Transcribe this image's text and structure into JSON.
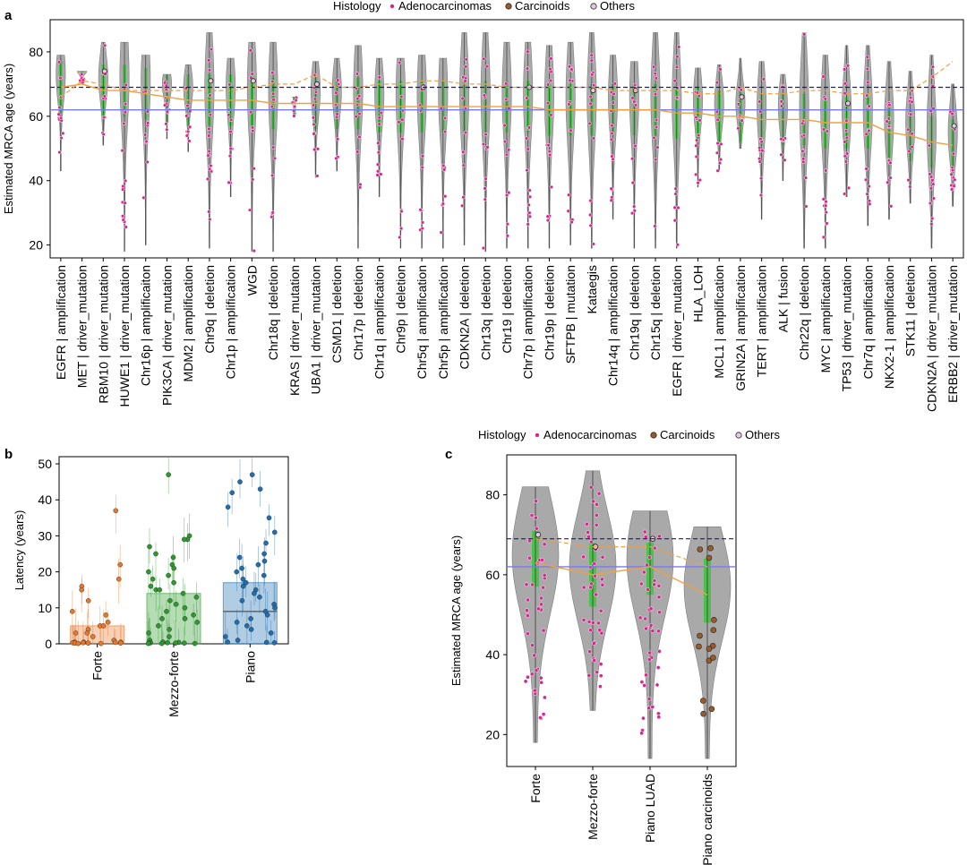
{
  "chart_data": [
    {
      "panel": "a",
      "type": "violin",
      "ylabel": "Estimated MRCA age (years)",
      "ylim": [
        16,
        90
      ],
      "yticks": [
        20,
        40,
        60,
        80
      ],
      "legend": {
        "title": "Histology",
        "entries": [
          "Adenocarcinomas",
          "Carcinoids",
          "Others"
        ],
        "colors": [
          "#d6278e",
          "#9a5a2a",
          "#e8c8df"
        ],
        "placement": "top-center"
      },
      "reference_lines": {
        "blue_solid": 62,
        "navy_dashed": 69
      },
      "categories": [
        "EGFR | amplification",
        "MET | driver_mutation",
        "RBM10 | driver_mutation",
        "HUWE1 | driver_mutation",
        "Chr16p | amplificaiton",
        "PIK3CA | driver_mutation",
        "MDM2 | amplification",
        "Chr9q | deletion",
        "Chr1p | amplification",
        "WGD",
        "Chr18q | deletion",
        "KRAS | driver_mutation",
        "UBA1 | driver_mutation",
        "CSMD1 | deletion",
        "Chr17p | deletion",
        "Chr1q | amplification",
        "Chr9p | deletion",
        "Chr5q | amplification",
        "Chr5p | amplification",
        "CDKN2A | deletion",
        "Chr13q | deletion",
        "Chr19 | deletion",
        "Chr7p | amplification",
        "Chr19p | deletion",
        "SFTPB | mutation",
        "Kataegis",
        "Chr14q | amplification",
        "Chr19q | deletion",
        "Chr15q | deletion",
        "EGFR | driver_mutation",
        "HLA_LOH",
        "MCL1 | amplification",
        "GRIN2A | amplification",
        "TERT | amplification",
        "ALK | fusion",
        "Chr22q | deletion",
        "MYC | amplification",
        "TP53 | driver_mutation",
        "Chr7q | amplification",
        "NKX2-1 | amplification",
        "STK11 | deletion",
        "CDKN2A | driver_mutation",
        "ERBB2 | driver_mutation"
      ],
      "median_line_orange": [
        69,
        70,
        68,
        68,
        67,
        66,
        65,
        65,
        65,
        65,
        64,
        64,
        64,
        64,
        64,
        63,
        63,
        63,
        63,
        63,
        63,
        63,
        63,
        62,
        62,
        62,
        62,
        62,
        62,
        61,
        61,
        60,
        60,
        59,
        59,
        59,
        58,
        58,
        58,
        55,
        54,
        52,
        51
      ],
      "dashed_line_orange": [
        66,
        71,
        70,
        68,
        68,
        68,
        68,
        68,
        68,
        69,
        70,
        70,
        73,
        69,
        69,
        70,
        70,
        71,
        71,
        70,
        70,
        69,
        69,
        69,
        69,
        69,
        68,
        68,
        68,
        68,
        67,
        67,
        69,
        67,
        67,
        68,
        68,
        67,
        67,
        68,
        68,
        72,
        77
      ],
      "min": [
        43,
        70,
        51,
        18,
        20,
        53,
        49,
        19,
        35,
        18,
        18,
        60,
        41,
        43,
        19,
        35,
        19,
        19,
        19,
        20,
        18,
        19,
        19,
        19,
        20,
        19,
        28,
        19,
        19,
        19,
        38,
        43,
        50,
        28,
        40,
        19,
        19,
        35,
        26,
        28,
        33,
        19,
        32
      ],
      "max": [
        79,
        74,
        83,
        83,
        79,
        73,
        76,
        86,
        78,
        83,
        83,
        66,
        77,
        78,
        82,
        78,
        78,
        79,
        78,
        86,
        86,
        83,
        83,
        82,
        83,
        86,
        79,
        77,
        86,
        86,
        75,
        76,
        78,
        77,
        73,
        86,
        79,
        82,
        82,
        77,
        74,
        79,
        70
      ]
    },
    {
      "panel": "b",
      "type": "bar",
      "ylabel": "Latency (years)",
      "ylim": [
        0,
        52
      ],
      "yticks": [
        0,
        10,
        20,
        30,
        40,
        50
      ],
      "categories": [
        "Forte",
        "Mezzo-forte",
        "Piano"
      ],
      "values": [
        5,
        14,
        17
      ],
      "medians": [
        0,
        0,
        9
      ],
      "colors": [
        "#e8772a",
        "#2e9a2e",
        "#1f6fb0"
      ],
      "points": [
        [
          37,
          22,
          18,
          16,
          15,
          12,
          9,
          8,
          6,
          5,
          5,
          4,
          3,
          3,
          2,
          1,
          0.5,
          0.5,
          0.5,
          0.4,
          0.3,
          0.3,
          0.3,
          0.2,
          0.2,
          0.2,
          0.1,
          0.1
        ],
        [
          47,
          30,
          29,
          29,
          27,
          25,
          24,
          22,
          21,
          20,
          19,
          18,
          17,
          16,
          15,
          15,
          14,
          13,
          12,
          11,
          10,
          9,
          8,
          7,
          7,
          6,
          5,
          4,
          3,
          2,
          1,
          0.5,
          0.4,
          0.3,
          0.3,
          0.2,
          0.2,
          0.2,
          0.1,
          0.1,
          0.1
        ],
        [
          47,
          45,
          43,
          42,
          38,
          35,
          31,
          28,
          25,
          24,
          23,
          22,
          21,
          20,
          19,
          18,
          17,
          16,
          15,
          14,
          13,
          12,
          11,
          10,
          9,
          8,
          7,
          6,
          5,
          4,
          3,
          2,
          1,
          0.5,
          0.4,
          0.3
        ]
      ]
    },
    {
      "panel": "c",
      "type": "violin",
      "ylabel": "Estimated MRCA age (years)",
      "ylim": [
        12,
        90
      ],
      "yticks": [
        20,
        40,
        60,
        80
      ],
      "legend": {
        "title": "Histology",
        "entries": [
          "Adenocarcinomas",
          "Carcinoids",
          "Others"
        ],
        "colors": [
          "#d6278e",
          "#9a5a2a",
          "#e8c8df"
        ],
        "placement": "top-center"
      },
      "categories": [
        "Forte",
        "Mezzo-forte",
        "Piano LUAD",
        "Piano carcinoids"
      ],
      "reference_lines": {
        "blue_solid": 62,
        "navy_dashed": 69
      },
      "median_line_orange": [
        63,
        60,
        62,
        55
      ],
      "dashed_line_orange": [
        69,
        67,
        67,
        62
      ],
      "min": [
        18,
        26,
        14,
        14
      ],
      "max": [
        82,
        86,
        76,
        72
      ],
      "iqr": [
        [
          57,
          71
        ],
        [
          52,
          68
        ],
        [
          55,
          68
        ],
        [
          48,
          64
        ]
      ]
    }
  ]
}
